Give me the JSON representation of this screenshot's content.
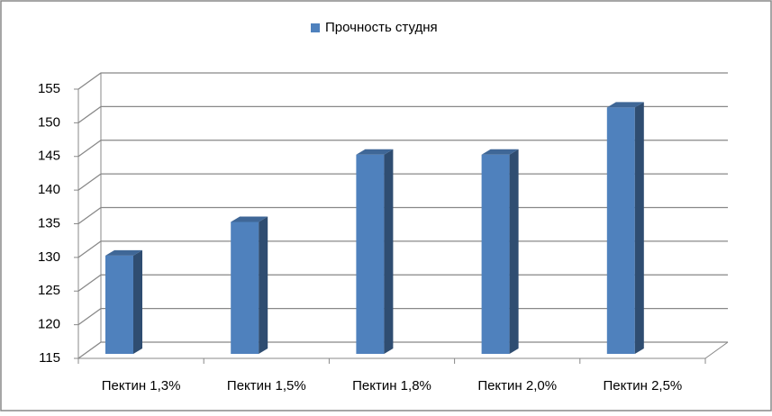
{
  "chart_data": {
    "type": "bar3d",
    "categories": [
      "Пектин 1,3%",
      "Пектин 1,5%",
      "Пектин 1,8%",
      "Пектин 2,0%",
      "Пектин 2,5%"
    ],
    "series": [
      {
        "name": "Прочность студня",
        "color": "#4f81bd",
        "values": [
          130,
          135,
          145,
          145,
          152
        ]
      }
    ],
    "ylim": [
      115,
      155
    ],
    "yticks": [
      115,
      120,
      125,
      130,
      135,
      140,
      145,
      150,
      155
    ],
    "grid": true,
    "legend": "top"
  }
}
